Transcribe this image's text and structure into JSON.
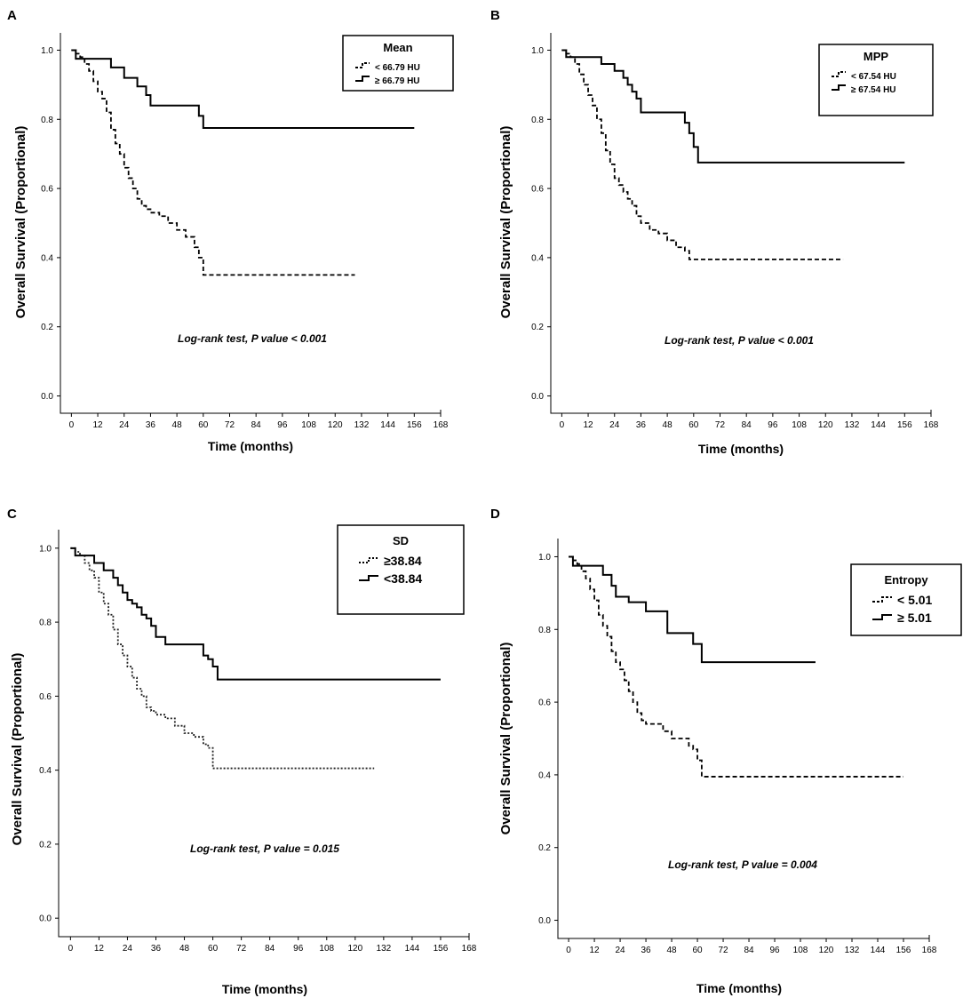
{
  "chart_data": [
    {
      "panel_label": "A",
      "type": "line",
      "title": "",
      "xlabel": "Time (months)",
      "ylabel": "Overall Survival (Proportional)",
      "xlim": [
        -5,
        168
      ],
      "ylim": [
        -0.05,
        1.05
      ],
      "xticks": [
        "0",
        "12",
        "24",
        "36",
        "48",
        "60",
        "72",
        "84",
        "96",
        "108",
        "120",
        "132",
        "144",
        "156",
        "168"
      ],
      "yticks": [
        "0.0",
        "0.2",
        "0.4",
        "0.6",
        "0.8",
        "1.0"
      ],
      "legend_title": "Mean",
      "legend_position": "top-right",
      "annotation": "Log-rank test, P value < 0.001",
      "series": [
        {
          "name": "< 66.79 HU",
          "style": "dashed",
          "x": [
            0,
            2,
            4,
            6,
            8,
            10,
            12,
            14,
            16,
            18,
            20,
            22,
            24,
            26,
            28,
            30,
            32,
            34,
            36,
            40,
            44,
            48,
            52,
            56,
            58,
            60,
            129
          ],
          "y": [
            1.0,
            0.99,
            0.98,
            0.96,
            0.94,
            0.91,
            0.88,
            0.86,
            0.82,
            0.77,
            0.73,
            0.7,
            0.66,
            0.63,
            0.6,
            0.57,
            0.55,
            0.54,
            0.53,
            0.52,
            0.5,
            0.48,
            0.46,
            0.43,
            0.4,
            0.35,
            0.35
          ]
        },
        {
          "name": "≥ 66.79 HU",
          "style": "solid",
          "x": [
            0,
            2,
            14,
            18,
            24,
            30,
            34,
            36,
            58,
            60,
            156
          ],
          "y": [
            1.0,
            0.975,
            0.975,
            0.95,
            0.92,
            0.895,
            0.87,
            0.84,
            0.81,
            0.775,
            0.775
          ]
        }
      ]
    },
    {
      "panel_label": "B",
      "type": "line",
      "title": "",
      "xlabel": "Time (months)",
      "ylabel": "Overall Survival (Proportional)",
      "xlim": [
        -5,
        168
      ],
      "ylim": [
        -0.05,
        1.05
      ],
      "xticks": [
        "0",
        "12",
        "24",
        "36",
        "48",
        "60",
        "72",
        "84",
        "96",
        "108",
        "120",
        "132",
        "144",
        "156",
        "168"
      ],
      "yticks": [
        "0.0",
        "0.2",
        "0.4",
        "0.6",
        "0.8",
        "1.0"
      ],
      "legend_title": "MPP",
      "legend_position": "top-right",
      "annotation": "Log-rank test, P value < 0.001",
      "series": [
        {
          "name": "< 67.54 HU",
          "style": "dashed",
          "x": [
            0,
            2,
            4,
            6,
            8,
            10,
            12,
            14,
            16,
            18,
            20,
            22,
            24,
            26,
            28,
            30,
            32,
            34,
            36,
            40,
            44,
            48,
            52,
            56,
            58,
            128
          ],
          "y": [
            1.0,
            0.99,
            0.98,
            0.96,
            0.93,
            0.9,
            0.87,
            0.84,
            0.8,
            0.76,
            0.71,
            0.67,
            0.63,
            0.61,
            0.59,
            0.57,
            0.55,
            0.52,
            0.5,
            0.48,
            0.47,
            0.45,
            0.43,
            0.42,
            0.395,
            0.395
          ]
        },
        {
          "name": "≥ 67.54 HU",
          "style": "solid",
          "x": [
            0,
            2,
            12,
            18,
            24,
            28,
            30,
            32,
            34,
            36,
            40,
            52,
            56,
            58,
            60,
            62,
            156
          ],
          "y": [
            1.0,
            0.98,
            0.98,
            0.96,
            0.94,
            0.92,
            0.9,
            0.88,
            0.86,
            0.82,
            0.82,
            0.82,
            0.79,
            0.76,
            0.72,
            0.675,
            0.675
          ]
        }
      ]
    },
    {
      "panel_label": "C",
      "type": "line",
      "title": "",
      "xlabel": "Time (months)",
      "ylabel": "Overall Survival (Proportional)",
      "xlim": [
        -5,
        168
      ],
      "ylim": [
        -0.05,
        1.05
      ],
      "xticks": [
        "0",
        "12",
        "24",
        "36",
        "48",
        "60",
        "72",
        "84",
        "96",
        "108",
        "120",
        "132",
        "144",
        "156",
        "168"
      ],
      "yticks": [
        "0.0",
        "0.2",
        "0.4",
        "0.6",
        "0.8",
        "1.0"
      ],
      "legend_title": "SD",
      "legend_position": "top-right",
      "annotation": "Log-rank test, P value = 0.015",
      "series": [
        {
          "name": "≥38.84",
          "style": "dotted",
          "x": [
            0,
            2,
            4,
            6,
            8,
            10,
            12,
            14,
            16,
            18,
            20,
            22,
            24,
            26,
            28,
            30,
            32,
            34,
            36,
            40,
            44,
            48,
            52,
            56,
            58,
            60,
            128
          ],
          "y": [
            1.0,
            0.99,
            0.98,
            0.96,
            0.94,
            0.92,
            0.88,
            0.85,
            0.82,
            0.78,
            0.74,
            0.71,
            0.68,
            0.65,
            0.62,
            0.6,
            0.57,
            0.56,
            0.55,
            0.54,
            0.52,
            0.5,
            0.49,
            0.47,
            0.46,
            0.405,
            0.405
          ]
        },
        {
          "name": "<38.84",
          "style": "solid",
          "x": [
            0,
            2,
            6,
            10,
            14,
            18,
            20,
            22,
            24,
            26,
            28,
            30,
            32,
            34,
            36,
            40,
            48,
            52,
            56,
            58,
            60,
            62,
            156
          ],
          "y": [
            1.0,
            0.98,
            0.98,
            0.96,
            0.94,
            0.92,
            0.9,
            0.88,
            0.86,
            0.85,
            0.84,
            0.82,
            0.81,
            0.79,
            0.76,
            0.74,
            0.74,
            0.74,
            0.71,
            0.7,
            0.68,
            0.645,
            0.645
          ]
        }
      ]
    },
    {
      "panel_label": "D",
      "type": "line",
      "title": "",
      "xlabel": "Time (months)",
      "ylabel": "Overall Survival (Proportional)",
      "xlim": [
        -5,
        168
      ],
      "ylim": [
        -0.05,
        1.05
      ],
      "xticks": [
        "0",
        "12",
        "24",
        "36",
        "48",
        "60",
        "72",
        "84",
        "96",
        "108",
        "120",
        "132",
        "144",
        "156",
        "168"
      ],
      "yticks": [
        "0.0",
        "0.2",
        "0.4",
        "0.6",
        "0.8",
        "1.0"
      ],
      "legend_title": "Entropy",
      "legend_position": "top-right",
      "annotation": "Log-rank test, P value = 0.004",
      "series": [
        {
          "name": "< 5.01",
          "style": "dashed",
          "x": [
            0,
            2,
            4,
            6,
            8,
            10,
            12,
            14,
            16,
            18,
            20,
            22,
            24,
            26,
            28,
            30,
            32,
            34,
            36,
            40,
            44,
            48,
            52,
            56,
            58,
            60,
            62,
            156
          ],
          "y": [
            1.0,
            0.99,
            0.98,
            0.96,
            0.94,
            0.91,
            0.88,
            0.84,
            0.81,
            0.78,
            0.74,
            0.71,
            0.69,
            0.66,
            0.63,
            0.6,
            0.57,
            0.55,
            0.54,
            0.54,
            0.52,
            0.5,
            0.5,
            0.48,
            0.47,
            0.44,
            0.395,
            0.395
          ]
        },
        {
          "name": "≥ 5.01",
          "style": "solid",
          "x": [
            0,
            2,
            12,
            16,
            20,
            22,
            28,
            36,
            46,
            54,
            58,
            62,
            115
          ],
          "y": [
            1.0,
            0.975,
            0.975,
            0.95,
            0.92,
            0.89,
            0.875,
            0.85,
            0.79,
            0.79,
            0.76,
            0.71,
            0.71
          ]
        }
      ]
    }
  ]
}
